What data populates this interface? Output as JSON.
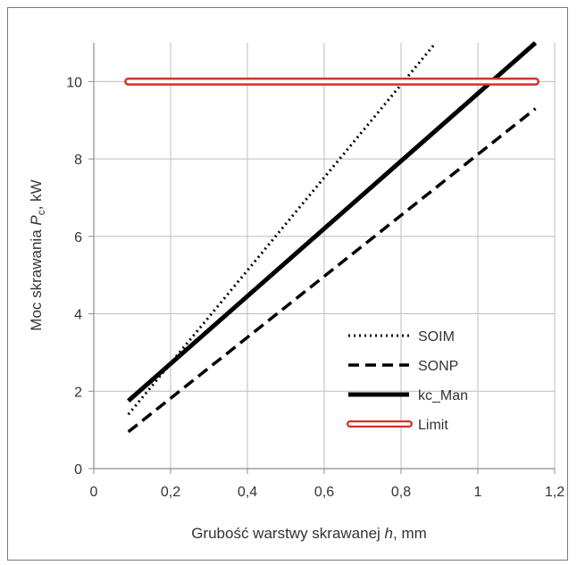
{
  "chart_data": {
    "type": "line",
    "xlabel_prefix": "Grubość warstwy skrawanej ",
    "xlabel_var": "h",
    "xlabel_suffix": ", mm",
    "ylabel_prefix": "Moc skrawania ",
    "ylabel_var": "P",
    "ylabel_sub": "c",
    "ylabel_suffix": ", kW",
    "xlim": [
      0,
      1.2
    ],
    "ylim": [
      0,
      11
    ],
    "x_ticks": [
      0,
      0.2,
      0.4,
      0.6,
      0.8,
      1.0,
      1.2
    ],
    "x_tick_labels": [
      "0",
      "0,2",
      "0,4",
      "0,6",
      "0,8",
      "1",
      "1,2"
    ],
    "y_ticks": [
      0,
      2,
      4,
      6,
      8,
      10
    ],
    "y_tick_labels": [
      "0",
      "2",
      "4",
      "6",
      "8",
      "10"
    ],
    "grid": true,
    "legend_position": "bottom-right",
    "series": [
      {
        "name": "SOIM",
        "style": "dotted",
        "color": "#000000",
        "x": [
          0.09,
          0.89
        ],
        "y": [
          1.4,
          11.0
        ]
      },
      {
        "name": "SONP",
        "style": "dashed",
        "color": "#000000",
        "x": [
          0.09,
          1.15
        ],
        "y": [
          0.95,
          9.3
        ]
      },
      {
        "name": "kc_Man",
        "style": "solid",
        "color": "#000000",
        "x": [
          0.09,
          1.15
        ],
        "y": [
          1.75,
          11.0
        ]
      },
      {
        "name": "Limit",
        "style": "double",
        "color": "#d0312d",
        "x": [
          0.09,
          1.15
        ],
        "y": [
          10.0,
          10.0
        ]
      }
    ]
  }
}
